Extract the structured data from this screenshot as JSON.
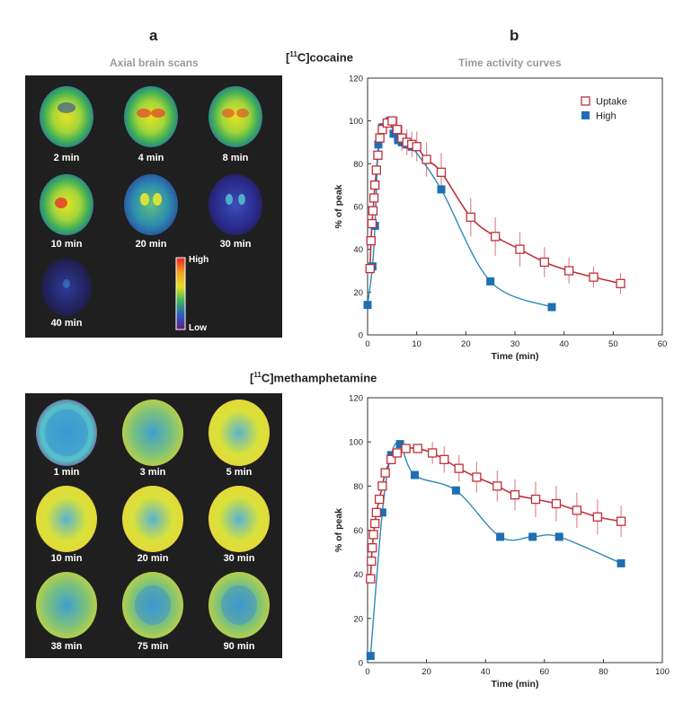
{
  "figure": {
    "panel_a_letter": "a",
    "panel_b_letter": "b",
    "panel_a_subtitle": "Axial brain scans",
    "panel_b_subtitle": "Time activity curves"
  },
  "cocaine": {
    "title_pre": "[",
    "title_sup": "11",
    "title_post": "C]cocaine",
    "scan_labels": [
      "2 min",
      "4 min",
      "8 min",
      "10 min",
      "20 min",
      "30 min",
      "40 min"
    ],
    "colorbar_high": "High",
    "colorbar_low": "Low"
  },
  "meth": {
    "title_pre": "[",
    "title_sup": "11",
    "title_post": "C]methamphetamine",
    "scan_labels": [
      "1 min",
      "3 min",
      "5 min",
      "10 min",
      "20 min",
      "30 min",
      "38 min",
      "75 min",
      "90 min"
    ]
  },
  "colors": {
    "uptake": "#c0303a",
    "uptake_err": "#e08a8f",
    "high": "#1f6fb2",
    "high_line": "#2b8ab8"
  },
  "chart_data": [
    {
      "type": "line",
      "xlabel": "Time (min)",
      "ylabel": "% of peak",
      "xlim": [
        0,
        60
      ],
      "ylim": [
        0,
        120
      ],
      "xticks": [
        0,
        10,
        20,
        30,
        40,
        50,
        60
      ],
      "yticks": [
        0,
        20,
        40,
        60,
        80,
        100,
        120
      ],
      "legend_position": "top-right",
      "series": [
        {
          "name": "Uptake",
          "marker": "open-square",
          "x": [
            0.5,
            0.7,
            0.9,
            1.1,
            1.3,
            1.5,
            1.8,
            2.1,
            2.5,
            3,
            4,
            5,
            6,
            7,
            8,
            9,
            10,
            12,
            15,
            21,
            26,
            31,
            36,
            41,
            46,
            51.5
          ],
          "y": [
            31,
            44,
            52,
            58,
            64,
            70,
            77,
            84,
            92,
            96,
            99,
            100,
            96,
            92,
            90,
            89,
            88,
            82,
            76,
            55,
            46,
            40,
            34,
            30,
            27,
            24
          ],
          "err": [
            0,
            0,
            0,
            0,
            0,
            0,
            0,
            0,
            0,
            0,
            0,
            0,
            6,
            6,
            6,
            6,
            7,
            8,
            9,
            9,
            9,
            8,
            7,
            6,
            5,
            5
          ]
        },
        {
          "name": "High",
          "marker": "filled-square",
          "x": [
            0,
            1,
            1.5,
            2.2,
            3,
            4.5,
            5.3,
            6.2,
            7,
            8,
            9,
            15,
            25,
            37.5
          ],
          "y": [
            14,
            32,
            51,
            89,
            97,
            100,
            94,
            91,
            90,
            89,
            88,
            68,
            25,
            13
          ]
        }
      ]
    },
    {
      "type": "line",
      "xlabel": "Time (min)",
      "ylabel": "% of peak",
      "xlim": [
        0,
        100
      ],
      "ylim": [
        0,
        120
      ],
      "xticks": [
        0,
        20,
        40,
        60,
        80,
        100
      ],
      "yticks": [
        0,
        20,
        40,
        60,
        80,
        100,
        120
      ],
      "legend_position": "top-right",
      "series": [
        {
          "name": "Uptake",
          "marker": "open-square",
          "x": [
            1,
            1.3,
            1.6,
            2,
            2.5,
            3,
            4,
            5,
            6,
            8,
            10,
            13,
            17,
            22,
            26,
            31,
            37,
            44,
            50,
            57,
            64,
            71,
            78,
            86
          ],
          "y": [
            38,
            46,
            52,
            58,
            63,
            68,
            74,
            80,
            86,
            92,
            95,
            97,
            97,
            95,
            92,
            88,
            84,
            80,
            76,
            74,
            72,
            69,
            66,
            64
          ],
          "err": [
            0,
            0,
            0,
            0,
            0,
            0,
            0,
            0,
            0,
            0,
            0,
            0,
            0,
            5,
            6,
            6,
            7,
            7,
            7,
            8,
            8,
            8,
            8,
            7
          ]
        },
        {
          "name": "High",
          "marker": "filled-square",
          "x": [
            1,
            5,
            8,
            11,
            16,
            30,
            45,
            56,
            65,
            86
          ],
          "y": [
            3,
            68,
            94,
            99,
            85,
            78,
            57,
            57,
            57,
            45
          ]
        }
      ]
    }
  ]
}
